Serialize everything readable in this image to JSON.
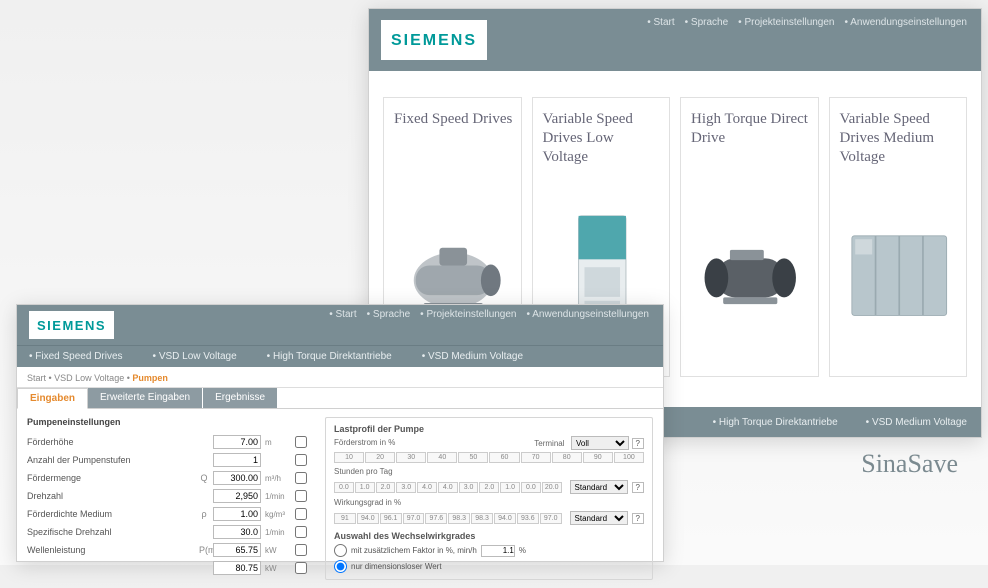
{
  "brand": "SIEMENS",
  "brand_color": "#009999",
  "header_bg": "#7a8d94",
  "product_name": "SinaSave",
  "main_window": {
    "topmenu": [
      "Start",
      "Sprache",
      "Projekteinstellungen",
      "Anwendungseinstellungen"
    ],
    "cards": [
      {
        "title": "Fixed Speed Drives"
      },
      {
        "title": "Variable Speed Drives Low Voltage"
      },
      {
        "title": "High Torque Direct Drive"
      },
      {
        "title": "Variable Speed Drives Medium Voltage"
      }
    ],
    "bottom_tabs": [
      "High Torque Direktantriebe",
      "VSD Medium Voltage"
    ]
  },
  "detail_window": {
    "topmenu": [
      "Start",
      "Sprache",
      "Projekteinstellungen",
      "Anwendungseinstellungen"
    ],
    "mid_tabs": [
      "Fixed Speed Drives",
      "VSD Low Voltage",
      "High Torque Direktantriebe",
      "VSD Medium Voltage"
    ],
    "breadcrumb": {
      "path": "Start • VSD Low Voltage •",
      "current": "Pumpen"
    },
    "form_tabs": {
      "active": "Eingaben",
      "others": [
        "Erweiterte Eingaben",
        "Ergebnisse"
      ]
    },
    "left_section_title": "Pumpeneinstellungen",
    "left_rows": [
      {
        "label": "Förderhöhe",
        "value": "7.00",
        "unit": "m",
        "sym": ""
      },
      {
        "label": "Anzahl der Pumpenstufen",
        "value": "1",
        "unit": "",
        "sym": ""
      },
      {
        "label": "Fördermenge",
        "value": "300.00",
        "unit": "m³/h",
        "sym": "Q"
      },
      {
        "label": "Drehzahl",
        "value": "2,950",
        "unit": "1/min",
        "sym": ""
      },
      {
        "label": "Förderdichte Medium",
        "value": "1.00",
        "unit": "kg/m³",
        "sym": "ρ"
      },
      {
        "label": "Spezifische Drehzahl",
        "value": "30.0",
        "unit": "1/min",
        "sym": ""
      },
      {
        "label": "Wellenleistung",
        "value": "65.75",
        "unit": "kW",
        "sym": "P(mech)"
      },
      {
        "label": "",
        "value": "80.75",
        "unit": "kW",
        "sym": ""
      }
    ],
    "right": {
      "title": "Lastprofil der Pumpe",
      "reference_label": "Förderstrom in %",
      "reference_select": "Voll",
      "scale1_label": "",
      "scale1": [
        "10",
        "20",
        "30",
        "40",
        "50",
        "60",
        "70",
        "80",
        "90",
        "100"
      ],
      "scale2_label": "Stunden pro Tag",
      "scale2": [
        "0.0",
        "1.0",
        "2.0",
        "3.0",
        "4.0",
        "4.0",
        "3.0",
        "2.0",
        "1.0",
        "0.0",
        "20.0"
      ],
      "scale2_select": "Standard",
      "scale3_label": "Wirkungsgrad in %",
      "scale3": [
        "91",
        "94.0",
        "96.1",
        "97.0",
        "97.6",
        "98.3",
        "98.3",
        "94.0",
        "93.6",
        "97.0"
      ],
      "scale3_select": "Standard",
      "config_title": "Auswahl des Wechselwirkgrades",
      "radio1_label": "mit zusätzlichem Faktor in %, min/h",
      "radio1_value": "1.1",
      "radio2_label": "nur dimensionsloser Wert"
    }
  }
}
